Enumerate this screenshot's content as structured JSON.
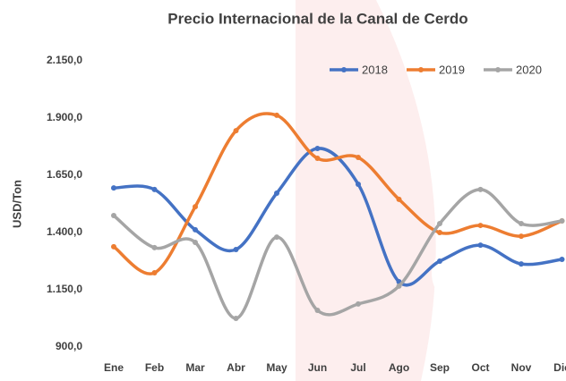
{
  "chart_data": {
    "type": "line",
    "title": "Precio Internacional de la Canal de Cerdo",
    "y_label": "USD/Ton",
    "categories": [
      "Ene",
      "Feb",
      "Mar",
      "Abr",
      "May",
      "Jun",
      "Jul",
      "Ago",
      "Sep",
      "Oct",
      "Nov",
      "Dic"
    ],
    "series": [
      {
        "name": "2018",
        "color": "#4472c4",
        "values": [
          1595,
          1588,
          1412,
          1326,
          1572,
          1767,
          1611,
          1185,
          1275,
          1345,
          1263,
          1283
        ]
      },
      {
        "name": "2019",
        "color": "#ed7d31",
        "values": [
          1338,
          1224,
          1513,
          1845,
          1912,
          1724,
          1728,
          1545,
          1400,
          1431,
          1384,
          1451
        ]
      },
      {
        "name": "2020",
        "color": "#a5a5a5",
        "values": [
          1474,
          1334,
          1357,
          1025,
          1380,
          1060,
          1088,
          1166,
          1439,
          1588,
          1439,
          1451
        ]
      }
    ],
    "ylim": [
      900,
      2150
    ],
    "yticks": [
      {
        "value": 900,
        "label": "900,0"
      },
      {
        "value": 1150,
        "label": "1.150,0"
      },
      {
        "value": 1400,
        "label": "1.400,0"
      },
      {
        "value": 1650,
        "label": "1.650,0"
      },
      {
        "value": 1900,
        "label": "1.900,0"
      },
      {
        "value": 2150,
        "label": "2.150,0"
      }
    ],
    "smooth": true,
    "legend": "top-right"
  }
}
